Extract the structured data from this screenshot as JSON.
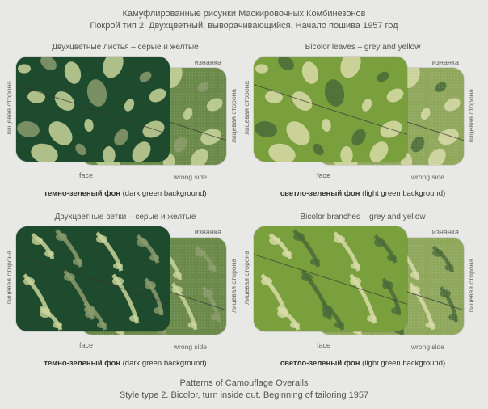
{
  "header": {
    "line1": "Камуфлированные рисунки Маскировочных Комбинезонов",
    "line2": "Покрой тип 2. Двухцветный, выворачивающийся. Начало пошива 1957 год"
  },
  "footer": {
    "line1": "Patterns of Camouflage Overalls",
    "line2": "Style type 2. Bicolor, turn inside out. Beginning of tailoring 1957"
  },
  "labels": {
    "face_side_ru": "лицевая сторона",
    "wrong_side_ru": "изнанка",
    "face_en": "face",
    "wrong_side_en": "wrong side"
  },
  "panels": [
    {
      "title": "Двухцветные листья – серые и желтые",
      "caption_bold": "темно-зеленый фон",
      "caption_paren": "(dark green background)",
      "front_bg": "#1e4a2e",
      "back_bg": "#6b8a4a",
      "accent1": "#c8d49a",
      "accent2": "#8a9b6c",
      "pattern": "leaves"
    },
    {
      "title": "Bicolor leaves – grey and yellow",
      "caption_bold": "светло-зеленый фон",
      "caption_paren": "(light green background)",
      "front_bg": "#7aa03e",
      "back_bg": "#8fa85c",
      "accent1": "#d8dba8",
      "accent2": "#4a6b3a",
      "pattern": "leaves"
    },
    {
      "title": "Двухцветные ветки – серые и желтые",
      "caption_bold": "темно-зеленый фон",
      "caption_paren": "(dark green background)",
      "front_bg": "#1e4a2e",
      "back_bg": "#6b8a4a",
      "accent1": "#c8d49a",
      "accent2": "#8a9b6c",
      "pattern": "branches"
    },
    {
      "title": "Bicolor branches – grey and yellow",
      "caption_bold": "светло-зеленый фон",
      "caption_paren": "(light green background)",
      "front_bg": "#7aa03e",
      "back_bg": "#8fa85c",
      "accent1": "#d8dba8",
      "accent2": "#4a6b3a",
      "pattern": "branches"
    }
  ]
}
